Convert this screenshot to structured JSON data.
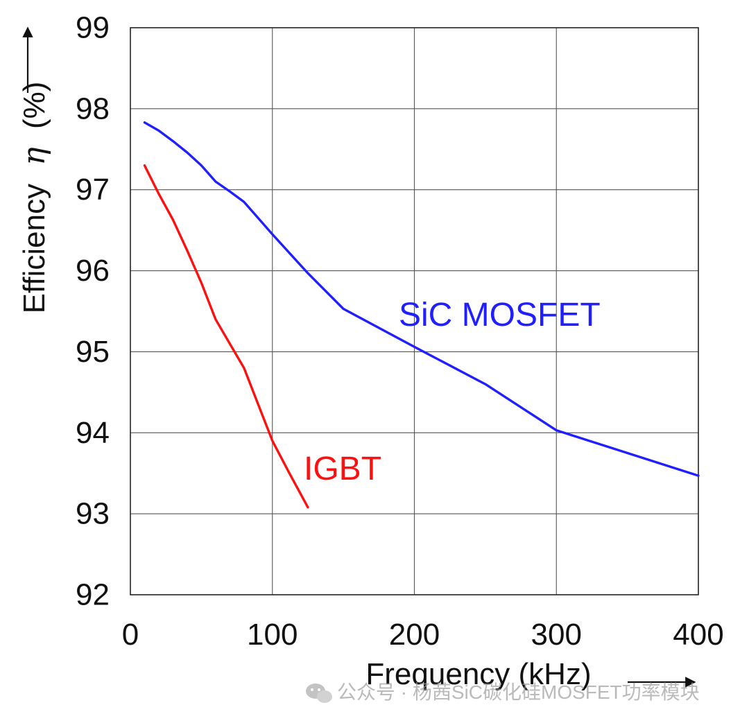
{
  "chart_data": {
    "type": "line",
    "xlabel": "Frequency (kHz)",
    "ylabel": "Efficiency",
    "ylabel_symbol": "η",
    "ylabel_unit": "(%)",
    "xlim": [
      0,
      400
    ],
    "ylim": [
      92,
      99
    ],
    "x_ticks": [
      0,
      100,
      200,
      300,
      400
    ],
    "y_ticks": [
      92,
      93,
      94,
      95,
      96,
      97,
      98,
      99
    ],
    "grid": true,
    "legend": "inline labels",
    "series": [
      {
        "name": "SiC MOSFET",
        "color": "#1f1fff",
        "points": [
          [
            10,
            97.83
          ],
          [
            20,
            97.73
          ],
          [
            30,
            97.6
          ],
          [
            40,
            97.46
          ],
          [
            50,
            97.3
          ],
          [
            60,
            97.1
          ],
          [
            70,
            96.98
          ],
          [
            80,
            96.85
          ],
          [
            100,
            96.45
          ],
          [
            125,
            95.97
          ],
          [
            150,
            95.53
          ],
          [
            200,
            95.06
          ],
          [
            250,
            94.6
          ],
          [
            300,
            94.03
          ],
          [
            350,
            93.75
          ],
          [
            400,
            93.47
          ]
        ]
      },
      {
        "name": "IGBT",
        "color": "#ff1010",
        "points": [
          [
            10,
            97.3
          ],
          [
            20,
            96.95
          ],
          [
            30,
            96.63
          ],
          [
            40,
            96.25
          ],
          [
            50,
            95.85
          ],
          [
            60,
            95.4
          ],
          [
            70,
            95.1
          ],
          [
            80,
            94.8
          ],
          [
            90,
            94.35
          ],
          [
            100,
            93.9
          ],
          [
            112,
            93.5
          ],
          [
            125,
            93.08
          ]
        ]
      }
    ]
  },
  "watermark": {
    "text": "公众号 · 杨茜SiC碳化硅MOSFET功率模块",
    "icon": "wechat-icon"
  }
}
